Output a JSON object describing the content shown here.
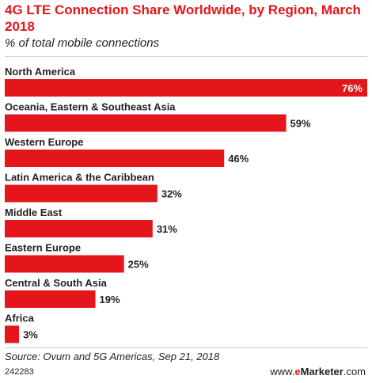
{
  "header": {
    "title": "4G LTE Connection Share Worldwide, by Region, March 2018",
    "subtitle": "% of total mobile connections"
  },
  "footer": {
    "source": "Source: Ovum and 5G Americas, Sep 21, 2018",
    "chart_id": "242283",
    "brand_prefix": "www.",
    "brand_e": "e",
    "brand_name": "Marketer",
    "brand_suffix": ".com"
  },
  "colors": {
    "bar": "#e4161b",
    "text": "#222222"
  },
  "chart_data": {
    "type": "bar",
    "orientation": "horizontal",
    "title": "4G LTE Connection Share Worldwide, by Region, March 2018",
    "subtitle": "% of total mobile connections",
    "categories": [
      "North America",
      "Oceania, Eastern & Southeast Asia",
      "Western Europe",
      "Latin America & the Caribbean",
      "Middle East",
      "Eastern Europe",
      "Central & South Asia",
      "Africa"
    ],
    "values": [
      76,
      59,
      46,
      32,
      31,
      25,
      19,
      3
    ],
    "value_labels": [
      "76%",
      "59%",
      "46%",
      "32%",
      "31%",
      "25%",
      "19%",
      "3%"
    ],
    "xlim": [
      0,
      76
    ],
    "grid": false,
    "legend": "none"
  }
}
